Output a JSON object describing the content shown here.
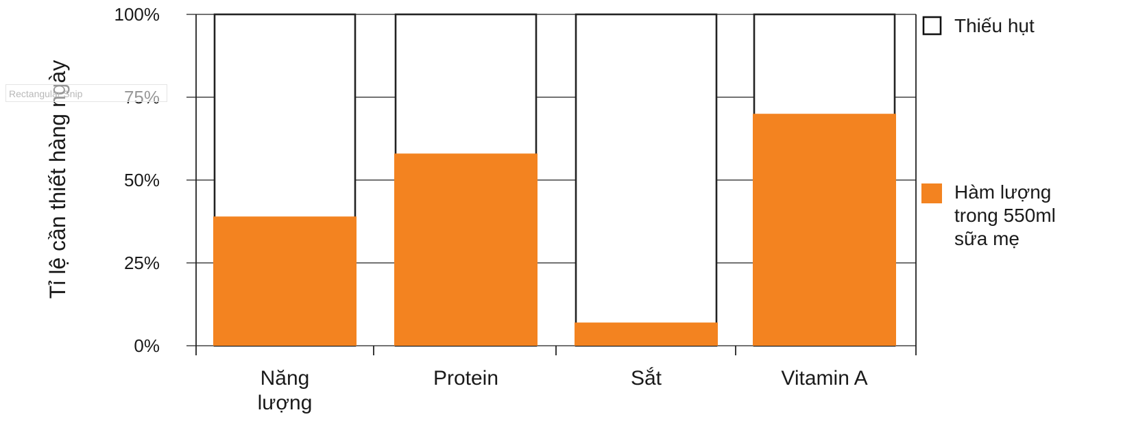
{
  "overlay": {
    "label": "Rectangular Snip"
  },
  "chart_data": {
    "type": "bar",
    "stacked": true,
    "title": "",
    "xlabel": "",
    "ylabel": "Tỉ lệ cần thiết hàng ngày",
    "ylim": [
      0,
      100
    ],
    "y_ticks": [
      "0%",
      "25%",
      "50%",
      "75%",
      "100%"
    ],
    "y_tick_values": [
      0,
      25,
      50,
      75,
      100
    ],
    "grid": true,
    "legend_position": "right",
    "categories": [
      [
        "Năng",
        "lượng"
      ],
      [
        "Protein"
      ],
      [
        "Sắt"
      ],
      [
        "Vitamin A"
      ]
    ],
    "series": [
      {
        "name": "Hàm lượng trong 550ml sữa mẹ",
        "legend_lines": [
          "Hàm lượng",
          "trong 550ml",
          "sữa mẹ"
        ],
        "color": "#f38320",
        "values": [
          39,
          58,
          7,
          70
        ]
      },
      {
        "name": "Thiếu hụt",
        "legend_lines": [
          "Thiếu hụt"
        ],
        "color": "#ffffff",
        "values": [
          61,
          42,
          93,
          30
        ]
      }
    ]
  }
}
